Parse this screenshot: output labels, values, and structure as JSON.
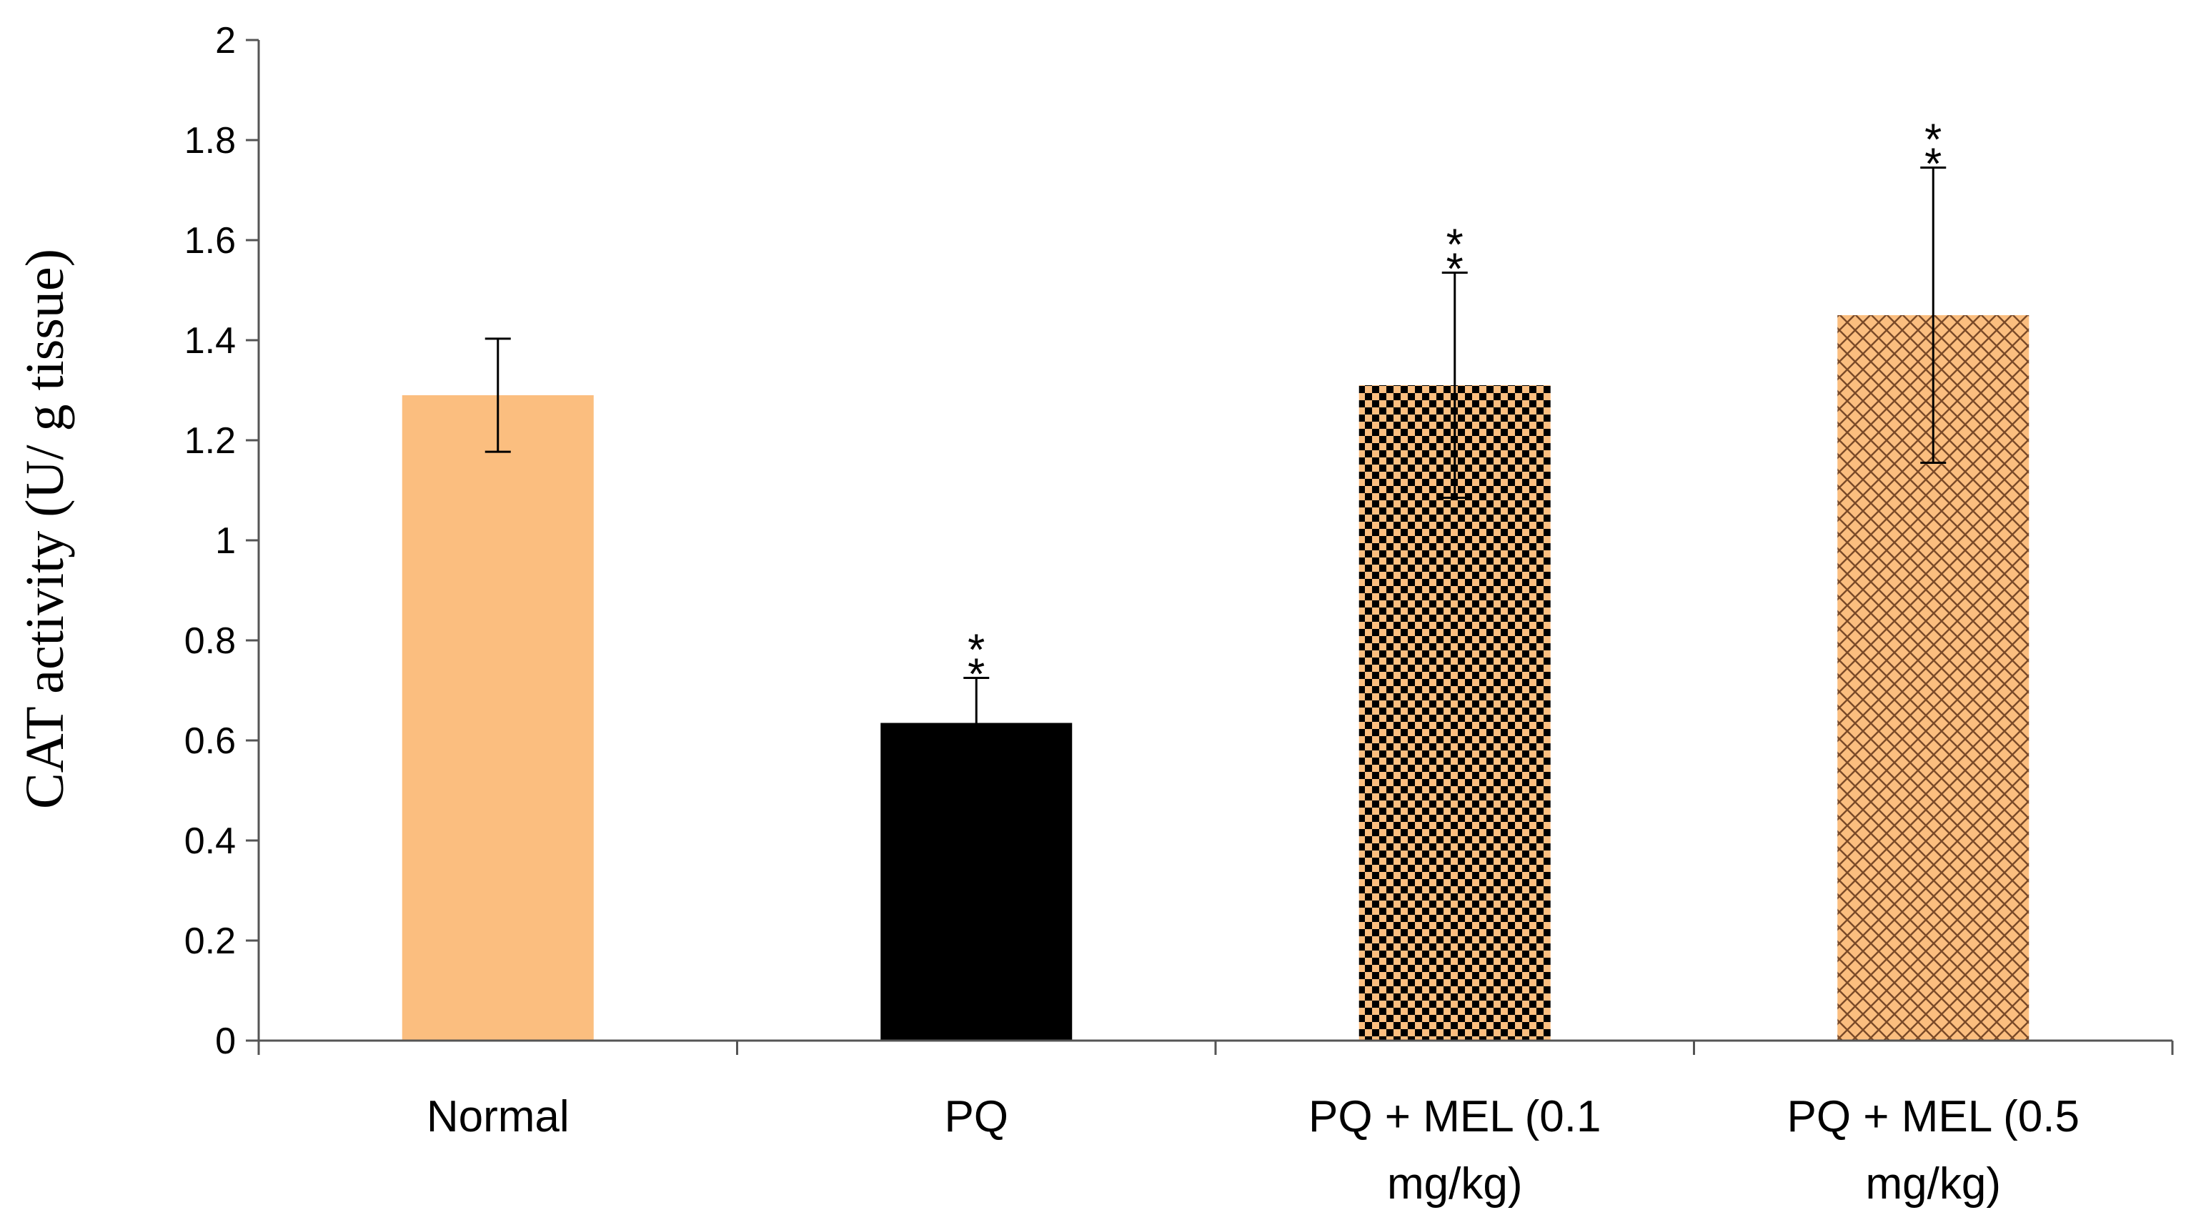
{
  "chart_data": {
    "type": "bar",
    "title": "",
    "xlabel": "",
    "ylabel": "CAT activity (U/ g tissue)",
    "ylim": [
      0,
      2
    ],
    "yticks": [
      "0",
      "0.2",
      "0.4",
      "0.6",
      "0.8",
      "1",
      "1.2",
      "1.4",
      "1.6",
      "1.8",
      "2"
    ],
    "grid": false,
    "categories": [
      [
        "Normal"
      ],
      [
        "PQ"
      ],
      [
        "PQ + MEL (0.1",
        "mg/kg)"
      ],
      [
        "PQ + MEL (0.5",
        "mg/kg)"
      ]
    ],
    "values": [
      1.29,
      0.635,
      1.31,
      1.45
    ],
    "errors": [
      0.113,
      0.09,
      0.225,
      0.295
    ],
    "significance": [
      "",
      "**",
      "**",
      "**"
    ],
    "fills": [
      "solid-orange",
      "solid-black",
      "checkerboard-orange-black",
      "crosshatch-orange"
    ],
    "colors": {
      "orange": "#FBBE7F",
      "black": "#000000",
      "hatch": "#7A4A28"
    }
  }
}
